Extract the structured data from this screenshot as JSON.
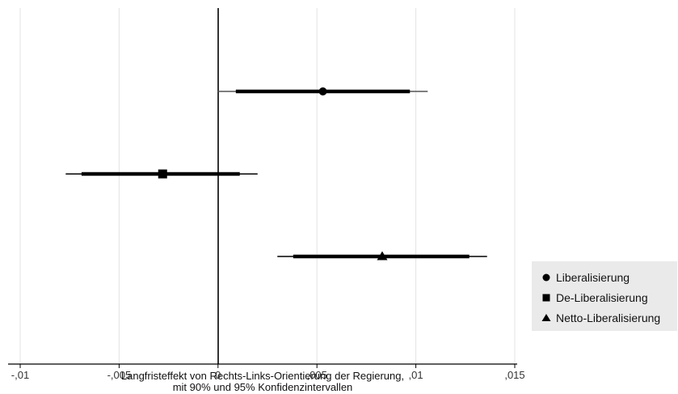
{
  "chart_data": {
    "type": "scatter",
    "subtype": "coefficient-plot",
    "orientation": "horizontal",
    "xlabel": [
      "Langfristeffekt von Rechts-Links-Orientierung der Regierung,",
      "mit 90% und 95% Konfidenzintervallen"
    ],
    "xlim": [
      -0.0102,
      0.0157
    ],
    "xticks": [
      -0.01,
      -0.005,
      0,
      0.005,
      0.01,
      0.015
    ],
    "xtick_labels": [
      "-,01",
      "-,005",
      "0",
      ",005",
      ",01",
      ",015"
    ],
    "grid": true,
    "reference_line": 0,
    "legend_position": "bottom-right",
    "series": [
      {
        "name": "Liberalisierung",
        "marker": "circle",
        "estimate": 0.0053,
        "ci90": [
          0.0009,
          0.0097
        ],
        "ci95": [
          0.0,
          0.0106
        ]
      },
      {
        "name": "De-Liberalisierung",
        "marker": "square",
        "estimate": -0.0028,
        "ci90": [
          -0.0069,
          0.0011
        ],
        "ci95": [
          -0.0077,
          0.002
        ]
      },
      {
        "name": "Netto-Liberalisierung",
        "marker": "triangle",
        "estimate": 0.0083,
        "ci90": [
          0.0038,
          0.0127
        ],
        "ci95": [
          0.003,
          0.0136
        ]
      }
    ],
    "colors": {
      "marks": "#000000",
      "grid": "#e3e3e3",
      "legend_bg": "#eaeaea"
    }
  }
}
